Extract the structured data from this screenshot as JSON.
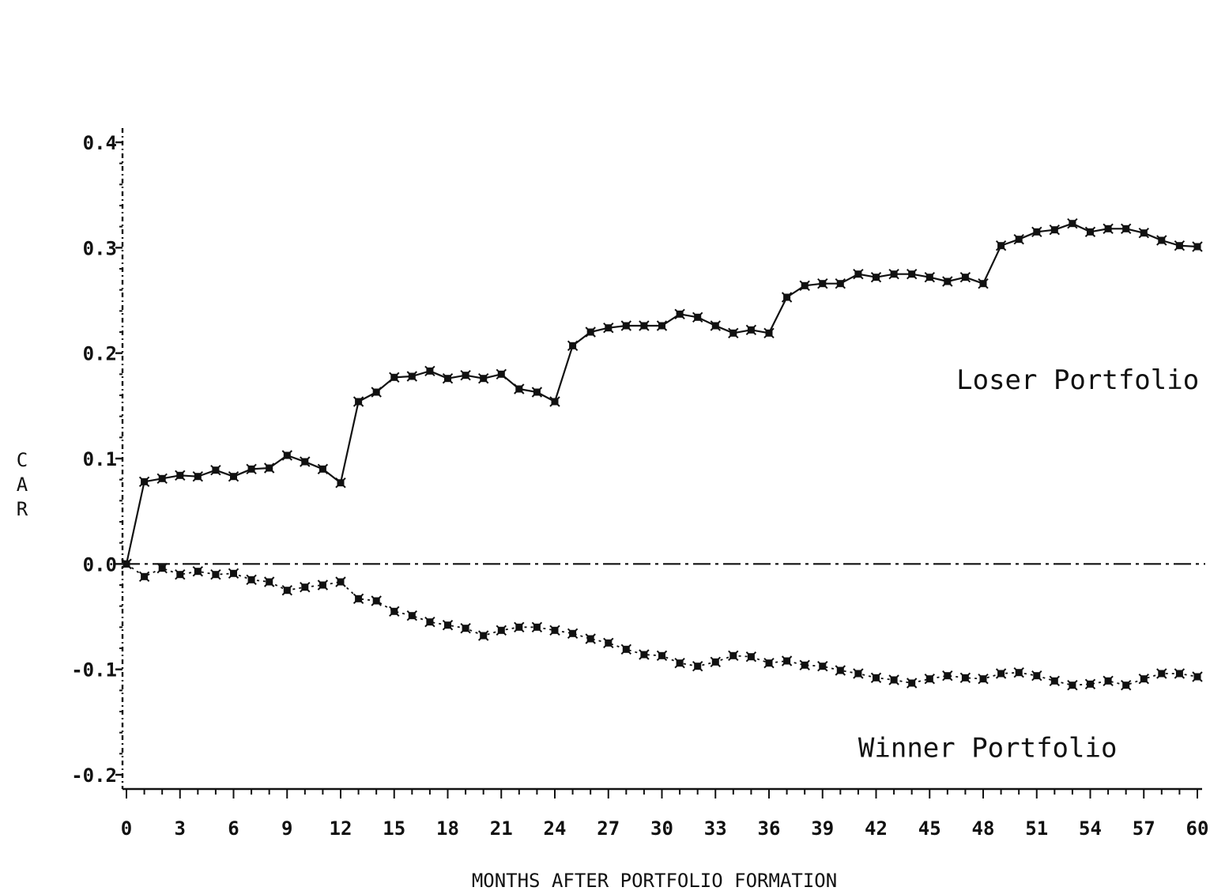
{
  "chart_data": {
    "type": "line",
    "title": "",
    "xlabel": "MONTHS AFTER PORTFOLIO FORMATION",
    "ylabel": "CAR",
    "xlim": [
      0,
      60
    ],
    "ylim": [
      -0.2,
      0.4
    ],
    "x_tick_values": [
      0,
      3,
      6,
      9,
      12,
      15,
      18,
      21,
      24,
      27,
      30,
      33,
      36,
      39,
      42,
      45,
      48,
      51,
      54,
      57,
      60
    ],
    "x_tick_labels": [
      "0",
      "3",
      "6",
      "9",
      "12",
      "15",
      "18",
      "21",
      "24",
      "27",
      "30",
      "33",
      "36",
      "39",
      "42",
      "45",
      "48",
      "51",
      "54",
      "57",
      "60"
    ],
    "y_tick_values": [
      -0.2,
      -0.1,
      0.0,
      0.1,
      0.2,
      0.3,
      0.4
    ],
    "y_tick_labels": [
      "-0.2",
      "-0.1",
      "0.0",
      "0.1",
      "0.2",
      "0.3",
      "0.4"
    ],
    "grid": false,
    "reference_line": {
      "y": 0.0,
      "style": "dash-dot"
    },
    "series": [
      {
        "name": "Loser Portfolio",
        "x": [
          0,
          1,
          2,
          3,
          4,
          5,
          6,
          7,
          8,
          9,
          10,
          11,
          12,
          13,
          14,
          15,
          16,
          17,
          18,
          19,
          20,
          21,
          22,
          23,
          24,
          25,
          26,
          27,
          28,
          29,
          30,
          31,
          32,
          33,
          34,
          35,
          36,
          37,
          38,
          39,
          40,
          41,
          42,
          43,
          44,
          45,
          46,
          47,
          48,
          49,
          50,
          51,
          52,
          53,
          54,
          55,
          56,
          57,
          58,
          59,
          60
        ],
        "values": [
          0.0,
          0.078,
          0.081,
          0.084,
          0.083,
          0.089,
          0.083,
          0.09,
          0.091,
          0.103,
          0.097,
          0.09,
          0.077,
          0.154,
          0.163,
          0.177,
          0.178,
          0.183,
          0.176,
          0.179,
          0.176,
          0.18,
          0.166,
          0.163,
          0.154,
          0.207,
          0.22,
          0.224,
          0.226,
          0.226,
          0.226,
          0.237,
          0.234,
          0.226,
          0.219,
          0.222,
          0.219,
          0.253,
          0.264,
          0.266,
          0.266,
          0.275,
          0.272,
          0.275,
          0.275,
          0.272,
          0.268,
          0.272,
          0.266,
          0.302,
          0.308,
          0.315,
          0.317,
          0.323,
          0.315,
          0.318,
          0.318,
          0.314,
          0.307,
          0.302,
          0.301
        ]
      },
      {
        "name": "Winner Portfolio",
        "x": [
          0,
          1,
          2,
          3,
          4,
          5,
          6,
          7,
          8,
          9,
          10,
          11,
          12,
          13,
          14,
          15,
          16,
          17,
          18,
          19,
          20,
          21,
          22,
          23,
          24,
          25,
          26,
          27,
          28,
          29,
          30,
          31,
          32,
          33,
          34,
          35,
          36,
          37,
          38,
          39,
          40,
          41,
          42,
          43,
          44,
          45,
          46,
          47,
          48,
          49,
          50,
          51,
          52,
          53,
          54,
          55,
          56,
          57,
          58,
          59,
          60
        ],
        "values": [
          0.0,
          -0.012,
          -0.004,
          -0.01,
          -0.007,
          -0.01,
          -0.009,
          -0.015,
          -0.017,
          -0.025,
          -0.022,
          -0.02,
          -0.017,
          -0.033,
          -0.035,
          -0.045,
          -0.049,
          -0.055,
          -0.058,
          -0.061,
          -0.068,
          -0.063,
          -0.06,
          -0.06,
          -0.063,
          -0.066,
          -0.071,
          -0.075,
          -0.081,
          -0.086,
          -0.087,
          -0.094,
          -0.097,
          -0.093,
          -0.087,
          -0.088,
          -0.094,
          -0.092,
          -0.096,
          -0.097,
          -0.101,
          -0.104,
          -0.108,
          -0.11,
          -0.113,
          -0.109,
          -0.106,
          -0.108,
          -0.109,
          -0.104,
          -0.103,
          -0.106,
          -0.111,
          -0.115,
          -0.114,
          -0.111,
          -0.115,
          -0.109,
          -0.104,
          -0.104,
          -0.107
        ]
      }
    ],
    "annotations": [
      {
        "text": "Loser Portfolio",
        "x": 46.5,
        "y": 0.166
      },
      {
        "text": "Winner Portfolio",
        "x": 41,
        "y": -0.183
      }
    ]
  }
}
